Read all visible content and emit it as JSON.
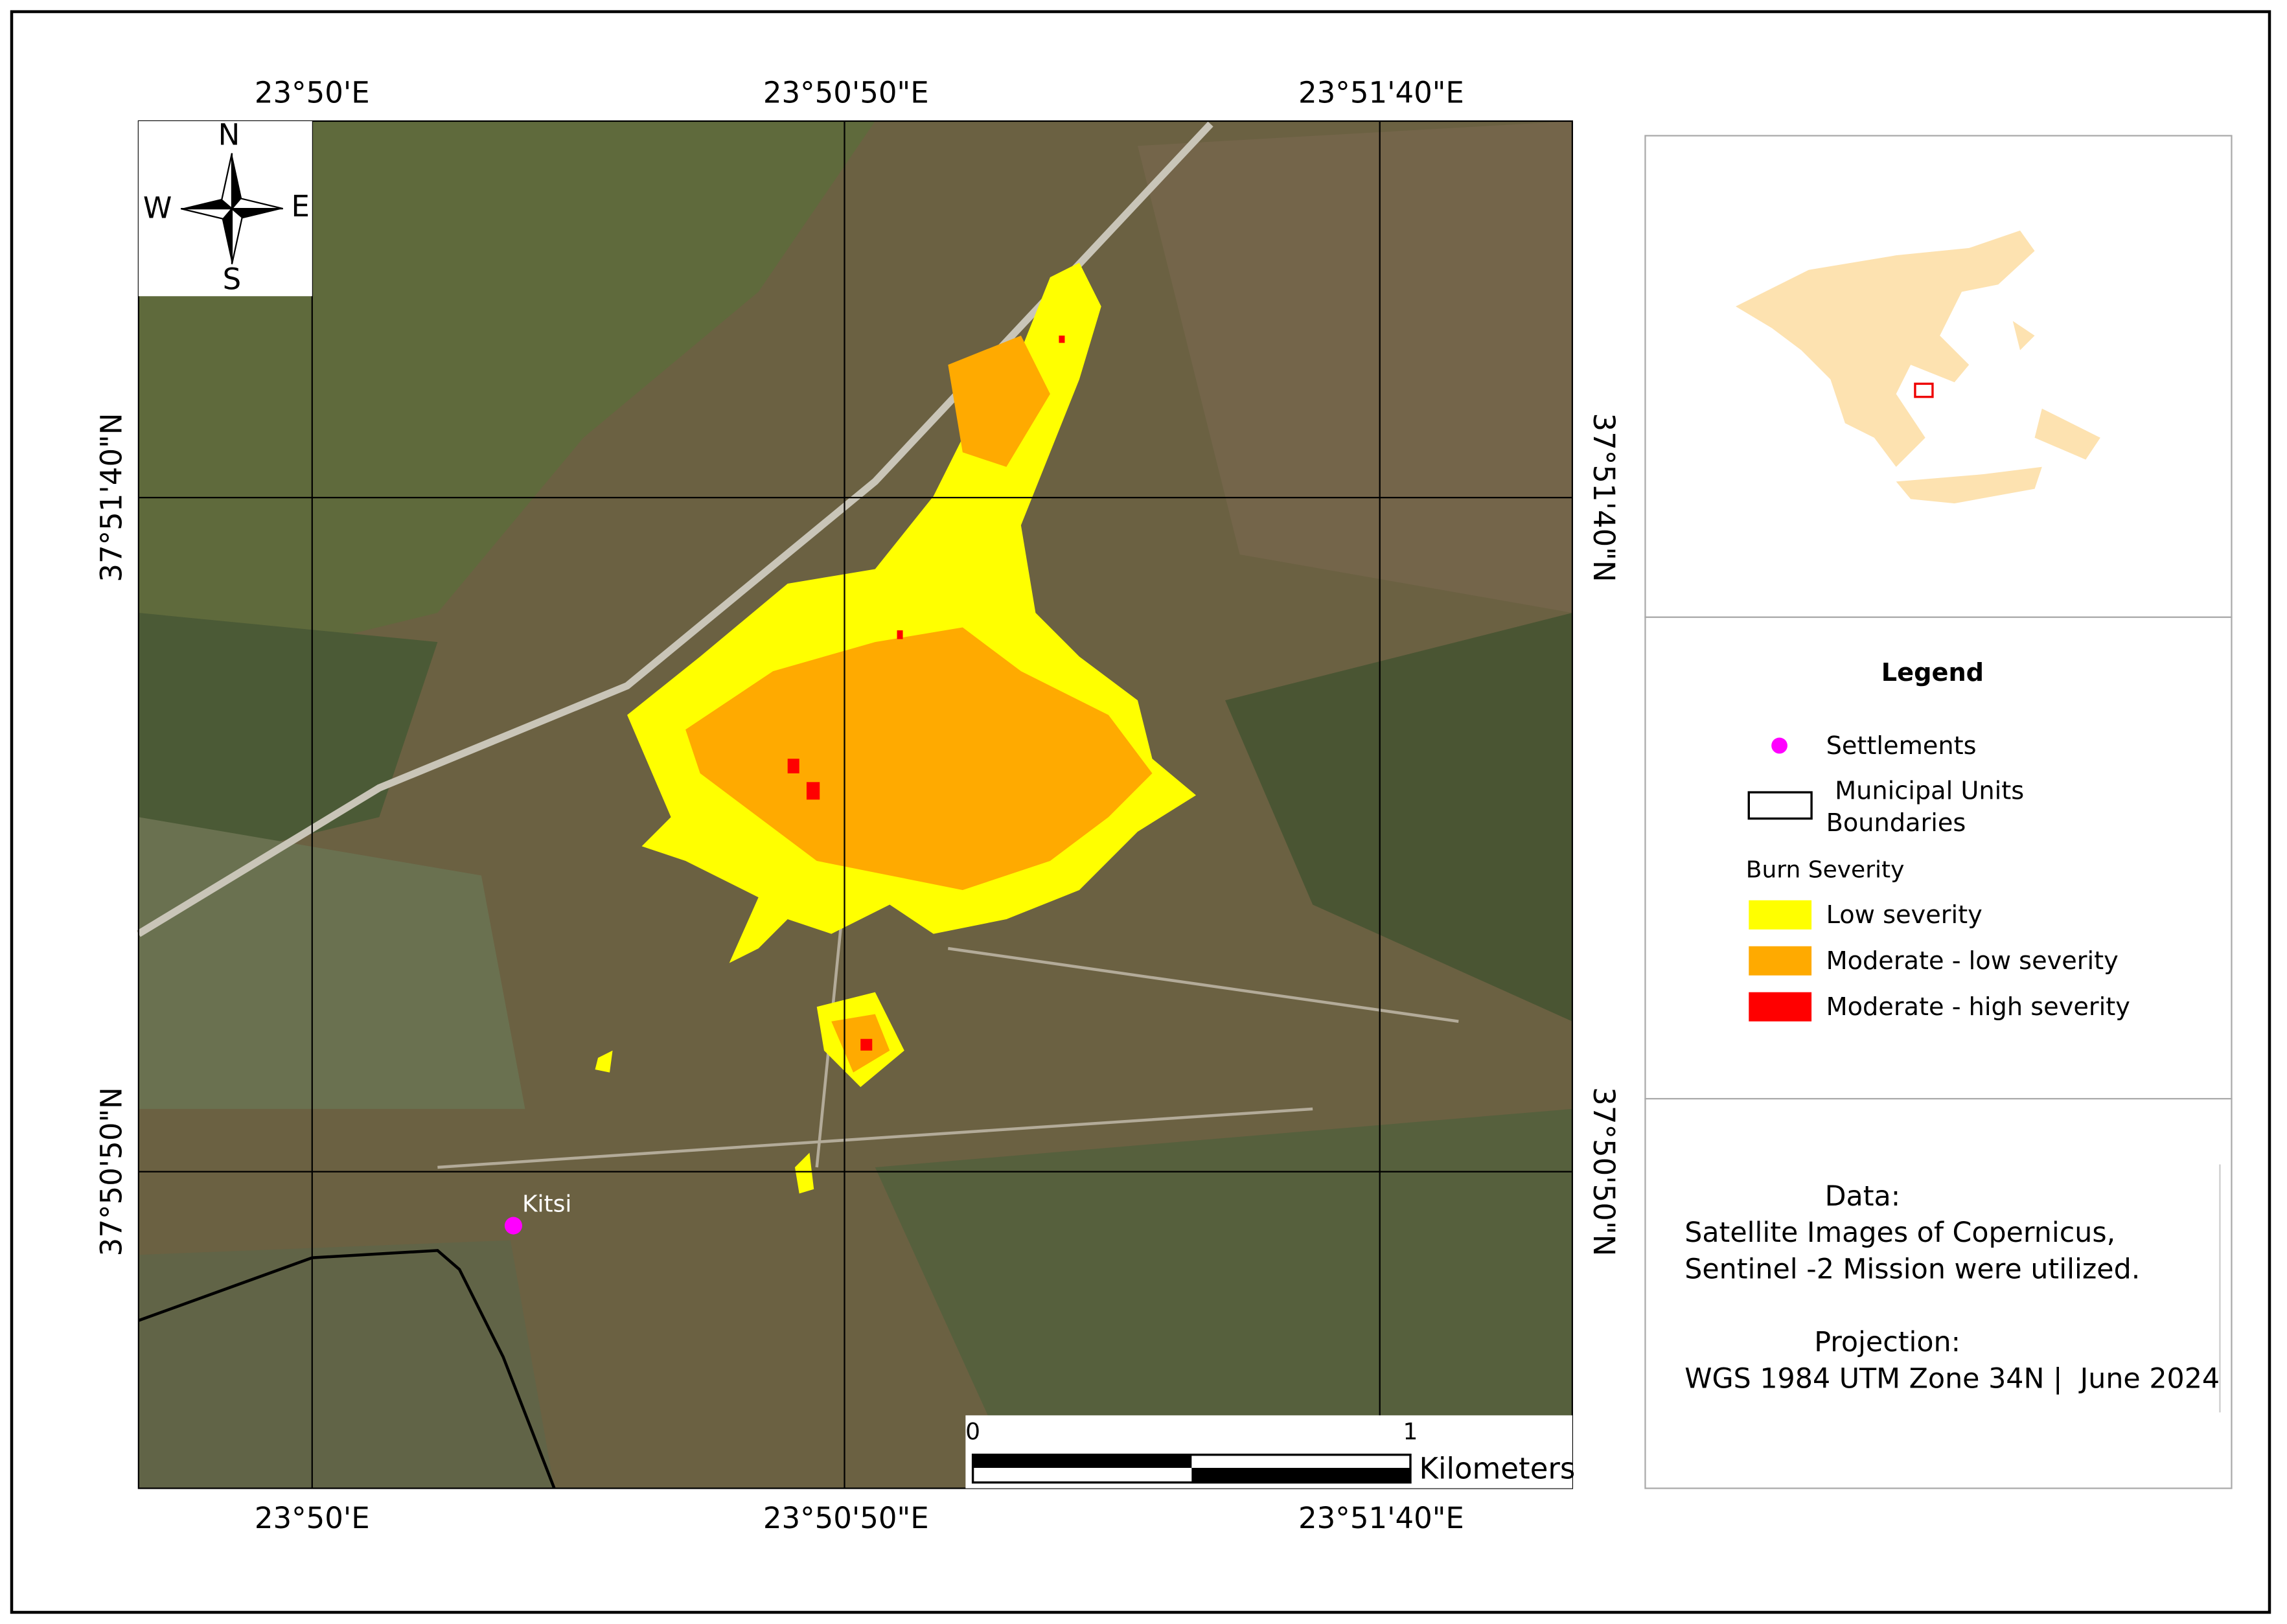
{
  "graticule": {
    "top": [
      "23°50'E",
      "23°50'50\"E",
      "23°51'40\"E"
    ],
    "bottom": [
      "23°50'E",
      "23°50'50\"E",
      "23°51'40\"E"
    ],
    "left": [
      "37°51'40\"N",
      "37°50'50\"N"
    ],
    "right": [
      "37°51'40\"N",
      "37°50'50\"N"
    ]
  },
  "compass": {
    "n": "N",
    "s": "S",
    "e": "E",
    "w": "W"
  },
  "settlement": {
    "label": "Kitsi"
  },
  "legend": {
    "title": "Legend",
    "settlements": "Settlements",
    "boundaries": [
      "Municipal Units",
      "Boundaries"
    ],
    "burn_title": "Burn Severity",
    "items": [
      {
        "label": "Low severity",
        "color": "#ffff00"
      },
      {
        "label": "Moderate - low severity",
        "color": "#ffaa00"
      },
      {
        "label": "Moderate - high severity",
        "color": "#ff0000"
      }
    ]
  },
  "info": {
    "data_title": "Data:",
    "data_lines": [
      "Satellite Images of Copernicus,",
      "Sentinel -2 Mission were utilized."
    ],
    "projection_title": "Projection:",
    "projection": "WGS 1984 UTM Zone 34N |  June 2024"
  },
  "scale_bar": {
    "start": "0",
    "end": "1",
    "unit": "Kilometers"
  }
}
